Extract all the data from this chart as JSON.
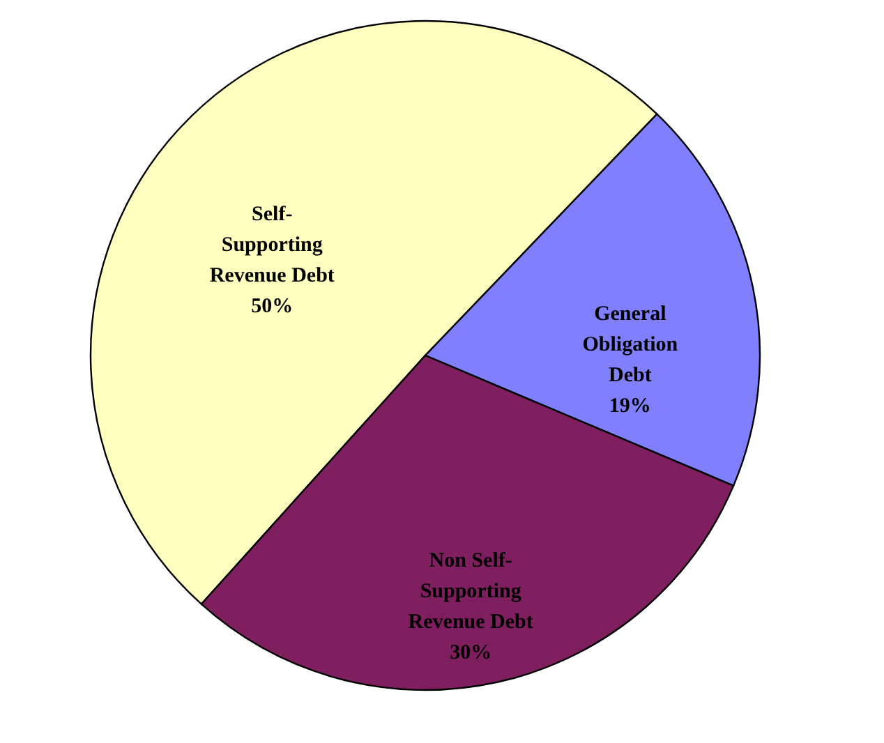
{
  "chart_data": {
    "type": "pie",
    "categories": [
      "Self-\nSupporting\nRevenue Debt",
      "General\nObligation\nDebt",
      "Non Self-\nSupporting\nRevenue Debt"
    ],
    "values": [
      50,
      19,
      30
    ],
    "value_labels": [
      "50%",
      "19%",
      "30%"
    ],
    "colors": [
      "#ffffc0",
      "#8080ff",
      "#7f1f5f"
    ],
    "legend": false
  }
}
